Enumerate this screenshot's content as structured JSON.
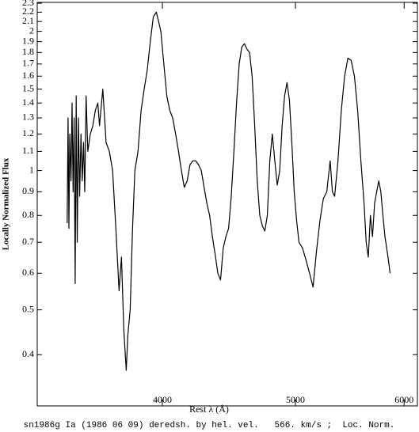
{
  "chart_data": {
    "type": "line",
    "xlabel": "Rest λ (Å)",
    "ylabel": "Locally Normalized Flux",
    "caption": "sn1986g Ia (1986 06 09) deredsh. by hel. vel.   566. km/s ;  Loc. Norm.",
    "xscale": "log",
    "yscale": "log",
    "color": "#000000",
    "xlim": [
      3243,
      6135
    ],
    "ylim": [
      0.31,
      2.31
    ],
    "xticks": [
      4000,
      5000,
      6000
    ],
    "yticks": [
      0.4,
      0.5,
      0.6,
      0.7,
      0.8,
      0.9,
      1,
      1.1,
      1.2,
      1.3,
      1.4,
      1.5,
      1.6,
      1.7,
      1.8,
      1.9,
      2,
      2.1,
      2.2,
      2.3
    ],
    "x": [
      3410,
      3415,
      3420,
      3425,
      3432,
      3438,
      3444,
      3450,
      3456,
      3462,
      3468,
      3475,
      3482,
      3490,
      3497,
      3505,
      3512,
      3520,
      3530,
      3545,
      3560,
      3575,
      3590,
      3600,
      3620,
      3640,
      3660,
      3680,
      3700,
      3720,
      3735,
      3750,
      3765,
      3775,
      3790,
      3805,
      3820,
      3840,
      3860,
      3880,
      3900,
      3920,
      3940,
      3960,
      3975,
      3990,
      4010,
      4030,
      4050,
      4070,
      4090,
      4110,
      4130,
      4150,
      4170,
      4190,
      4210,
      4230,
      4250,
      4270,
      4290,
      4310,
      4330,
      4350,
      4370,
      4390,
      4410,
      4430,
      4450,
      4470,
      4490,
      4510,
      4530,
      4550,
      4570,
      4590,
      4610,
      4630,
      4650,
      4670,
      4690,
      4710,
      4730,
      4750,
      4770,
      4790,
      4810,
      4830,
      4850,
      4870,
      4890,
      4910,
      4930,
      4950,
      4970,
      4990,
      5010,
      5030,
      5060,
      5090,
      5120,
      5150,
      5180,
      5210,
      5240,
      5270,
      5300,
      5320,
      5340,
      5370,
      5400,
      5430,
      5460,
      5490,
      5520,
      5550,
      5580,
      5610,
      5630,
      5650,
      5670,
      5690,
      5710,
      5730,
      5750,
      5770,
      5790,
      5810,
      5840,
      5860
    ],
    "values": [
      0.77,
      1.3,
      0.75,
      1.2,
      0.95,
      1.4,
      0.9,
      1.3,
      0.57,
      1.45,
      0.7,
      1.3,
      0.88,
      1.2,
      0.95,
      1.15,
      0.9,
      1.45,
      1.1,
      1.2,
      1.25,
      1.35,
      1.4,
      1.25,
      1.5,
      1.15,
      1.1,
      1.0,
      0.75,
      0.55,
      0.65,
      0.45,
      0.37,
      0.44,
      0.5,
      0.75,
      1.0,
      1.1,
      1.35,
      1.5,
      1.65,
      1.9,
      2.15,
      2.2,
      2.1,
      2.0,
      1.7,
      1.45,
      1.35,
      1.3,
      1.2,
      1.1,
      1.0,
      0.92,
      0.95,
      1.03,
      1.05,
      1.05,
      1.03,
      1.0,
      0.92,
      0.85,
      0.8,
      0.72,
      0.66,
      0.6,
      0.58,
      0.68,
      0.72,
      0.75,
      0.88,
      1.1,
      1.4,
      1.7,
      1.85,
      1.88,
      1.83,
      1.8,
      1.6,
      1.25,
      0.95,
      0.8,
      0.76,
      0.74,
      0.8,
      1.05,
      1.2,
      1.05,
      0.93,
      1.0,
      1.25,
      1.45,
      1.55,
      1.42,
      1.15,
      0.9,
      0.78,
      0.7,
      0.68,
      0.64,
      0.6,
      0.56,
      0.67,
      0.78,
      0.87,
      0.9,
      1.05,
      0.9,
      0.88,
      1.05,
      1.35,
      1.6,
      1.75,
      1.73,
      1.6,
      1.35,
      1.05,
      0.85,
      0.7,
      0.65,
      0.8,
      0.72,
      0.85,
      0.9,
      0.95,
      0.9,
      0.8,
      0.72,
      0.65,
      0.6
    ]
  }
}
